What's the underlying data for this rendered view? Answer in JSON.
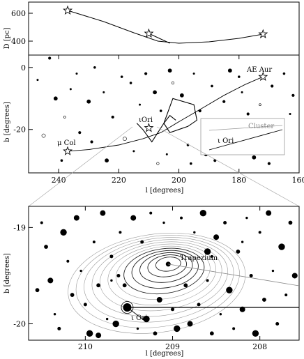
{
  "chart_data": [
    {
      "panel": "top",
      "type": "line",
      "ylabel": "D [pc]",
      "yticks": [
        400,
        600
      ],
      "ylim": [
        300,
        680
      ],
      "xlim": [
        250,
        160
      ],
      "series": [
        {
          "kind": "curve",
          "x": [
            237,
            225,
            215,
            207,
            200,
            190,
            180,
            172
          ],
          "y": [
            620,
            540,
            460,
            400,
            385,
            395,
            420,
            450
          ]
        },
        {
          "kind": "segment",
          "x": [
            210,
            203
          ],
          "y": [
            455,
            385
          ]
        }
      ],
      "stars": [
        {
          "x": 237,
          "y": 620
        },
        {
          "x": 210,
          "y": 455
        },
        {
          "x": 172,
          "y": 450
        }
      ]
    },
    {
      "panel": "middle",
      "type": "scatter",
      "xlabel": "l [degrees]",
      "ylabel": "b [degrees]",
      "xlim": [
        250,
        160
      ],
      "ylim": [
        -34,
        4
      ],
      "xticks": [
        240,
        220,
        200,
        180,
        160
      ],
      "yticks": [
        0,
        -20
      ],
      "annotations": {
        "ae_aur": "AE Aur",
        "iota_ori": "ιOri",
        "mu_col": "μ Col",
        "inset_cluster": "Cluster",
        "inset_iori": "ι Ori"
      },
      "stars": [
        {
          "x": 172,
          "y": -3
        },
        {
          "x": 210,
          "y": -19.5
        },
        {
          "x": 237,
          "y": -27
        }
      ],
      "path": {
        "x": [
          237,
          230,
          220,
          212,
          206,
          200,
          192,
          185,
          178,
          172
        ],
        "y": [
          -27,
          -26.5,
          -25,
          -23,
          -21,
          -17.5,
          -13,
          -9,
          -5.5,
          -3
        ]
      },
      "belt": {
        "x": [
          214,
          212,
          209,
          205,
          203,
          201
        ],
        "y": [
          -18,
          -20,
          -24,
          -18,
          -15.5,
          -17
        ]
      },
      "polygon": {
        "x": [
          205,
          202,
          195,
          194,
          197,
          203,
          205
        ],
        "y": [
          -18,
          -10,
          -12,
          -17,
          -19,
          -21,
          -18
        ]
      },
      "points": [
        [
          247,
          -4
        ],
        [
          243,
          3
        ],
        [
          241,
          -10
        ],
        [
          238,
          -16
        ],
        [
          236,
          -7
        ],
        [
          233,
          -21
        ],
        [
          230,
          -11
        ],
        [
          228,
          0
        ],
        [
          225,
          -8
        ],
        [
          222,
          -16
        ],
        [
          218,
          -23
        ],
        [
          216,
          -5
        ],
        [
          213,
          -12
        ],
        [
          211,
          -2
        ],
        [
          208,
          -8
        ],
        [
          206,
          -14
        ],
        [
          204,
          -28
        ],
        [
          202,
          -5
        ],
        [
          199,
          -9
        ],
        [
          197,
          -25
        ],
        [
          195,
          -2
        ],
        [
          193,
          -14
        ],
        [
          191,
          -28
        ],
        [
          189,
          -6
        ],
        [
          187,
          -19
        ],
        [
          185,
          -11
        ],
        [
          183,
          -1
        ],
        [
          181,
          -23
        ],
        [
          179,
          -8
        ],
        [
          177,
          -15
        ],
        [
          175,
          -29
        ],
        [
          173,
          -12
        ],
        [
          171,
          -18
        ],
        [
          169,
          -6
        ],
        [
          167,
          -26
        ],
        [
          165,
          -2
        ],
        [
          163,
          -15
        ],
        [
          162,
          -9
        ],
        [
          245,
          -22
        ],
        [
          239,
          -30
        ],
        [
          234,
          -2
        ],
        [
          229,
          -24
        ],
        [
          224,
          -30
        ],
        [
          219,
          -3
        ],
        [
          215,
          -27
        ],
        [
          207,
          -31
        ],
        [
          203,
          -1
        ],
        [
          196,
          -31
        ],
        [
          192,
          -22
        ],
        [
          188,
          -30
        ],
        [
          184,
          -25
        ],
        [
          180,
          -3
        ],
        [
          176,
          -21
        ],
        [
          170,
          -31
        ]
      ]
    },
    {
      "panel": "bottom",
      "type": "scatter",
      "xlabel": "l [degrees]",
      "ylabel": "b [degrees]",
      "xlim": [
        210.65,
        207.55
      ],
      "ylim": [
        -20.17,
        -18.78
      ],
      "xticks": [
        210,
        209,
        208
      ],
      "yticks": [
        -19,
        -20
      ],
      "annotations": {
        "trapezium": "Trapezium",
        "iota_ori": "ι Ori"
      },
      "trapezium": {
        "x": 209.05,
        "y": -19.38
      },
      "iota_ori": {
        "x": 209.52,
        "y": -19.83
      },
      "points": [
        [
          210.5,
          -18.95
        ],
        [
          210.45,
          -19.2
        ],
        [
          210.4,
          -19.55
        ],
        [
          210.35,
          -19.9
        ],
        [
          210.3,
          -20.05
        ],
        [
          210.25,
          -19.05
        ],
        [
          210.2,
          -19.35
        ],
        [
          210.15,
          -19.7
        ],
        [
          210.1,
          -18.9
        ],
        [
          210.05,
          -19.45
        ],
        [
          210.0,
          -19.8
        ],
        [
          209.95,
          -20.1
        ],
        [
          209.9,
          -19.15
        ],
        [
          209.85,
          -19.6
        ],
        [
          209.8,
          -18.85
        ],
        [
          209.75,
          -19.95
        ],
        [
          209.7,
          -19.3
        ],
        [
          209.65,
          -20.0
        ],
        [
          209.6,
          -19.05
        ],
        [
          209.55,
          -19.6
        ],
        [
          209.45,
          -18.9
        ],
        [
          209.4,
          -20.05
        ],
        [
          209.35,
          -19.15
        ],
        [
          209.3,
          -19.95
        ],
        [
          209.25,
          -18.85
        ],
        [
          209.2,
          -20.1
        ],
        [
          209.15,
          -19.75
        ],
        [
          209.1,
          -18.95
        ],
        [
          209.0,
          -19.85
        ],
        [
          208.95,
          -20.05
        ],
        [
          208.9,
          -18.9
        ],
        [
          208.85,
          -19.6
        ],
        [
          208.8,
          -20.0
        ],
        [
          208.75,
          -19.05
        ],
        [
          208.7,
          -19.8
        ],
        [
          208.65,
          -18.85
        ],
        [
          208.6,
          -19.55
        ],
        [
          208.55,
          -20.1
        ],
        [
          208.5,
          -19.1
        ],
        [
          208.45,
          -19.9
        ],
        [
          208.4,
          -18.95
        ],
        [
          208.35,
          -19.65
        ],
        [
          208.3,
          -20.05
        ],
        [
          208.25,
          -19.25
        ],
        [
          208.2,
          -19.85
        ],
        [
          208.15,
          -18.9
        ],
        [
          208.1,
          -19.5
        ],
        [
          208.05,
          -20.1
        ],
        [
          208.0,
          -19.05
        ],
        [
          207.95,
          -19.75
        ],
        [
          207.9,
          -18.85
        ],
        [
          207.85,
          -19.45
        ],
        [
          207.8,
          -20.0
        ],
        [
          207.75,
          -19.2
        ],
        [
          207.7,
          -19.7
        ],
        [
          207.65,
          -18.95
        ],
        [
          207.6,
          -19.5
        ],
        [
          209.7,
          -19.55
        ],
        [
          209.62,
          -19.5
        ],
        [
          208.6,
          -19.25
        ],
        [
          208.55,
          -19.3
        ],
        [
          210.55,
          -19.65
        ],
        [
          209.85,
          -20.12
        ],
        [
          208.2,
          -19.15
        ]
      ]
    }
  ]
}
